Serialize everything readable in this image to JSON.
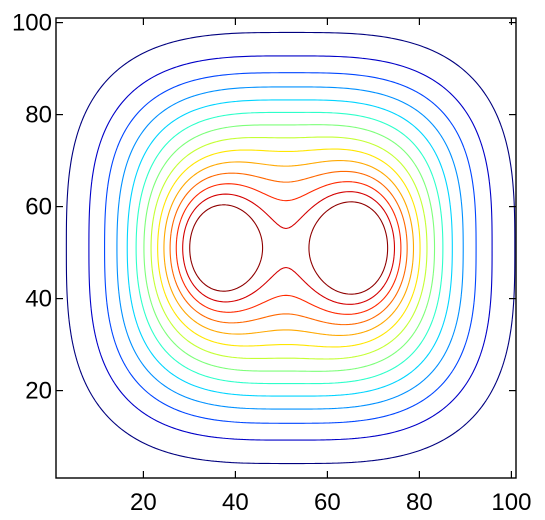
{
  "chart_data": {
    "type": "contour",
    "title": "",
    "xlabel": "",
    "ylabel": "",
    "xlim": [
      1,
      101
    ],
    "ylim": [
      1,
      101
    ],
    "x_ticks": [
      20,
      40,
      60,
      80,
      100
    ],
    "y_ticks": [
      20,
      40,
      60,
      80,
      100
    ],
    "grid": false,
    "legend": "none",
    "colormap": "jet",
    "levels": 14,
    "peaks": [
      {
        "x": 34,
        "y": 51
      },
      {
        "x": 68,
        "y": 51
      }
    ],
    "saddle": {
      "x": 51,
      "y": 51
    },
    "outer_extent": {
      "x": [
        9,
        95
      ],
      "y": [
        10,
        92
      ]
    },
    "level_colors": [
      "#00007f",
      "#0000c8",
      "#0046ff",
      "#0090ff",
      "#00d4ff",
      "#2dffca",
      "#7dff7a",
      "#c4ff33",
      "#ffe600",
      "#ffa800",
      "#ff6800",
      "#ff2a00",
      "#d40000",
      "#8f0000"
    ]
  }
}
